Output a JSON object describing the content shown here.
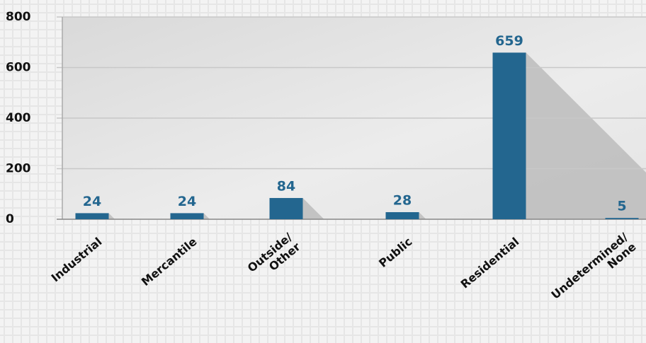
{
  "chart_data": {
    "type": "bar",
    "categories": [
      "Industrial",
      "Mercantile",
      "Outside/\nOther",
      "Public",
      "Residential",
      "Undetermined/\nNone"
    ],
    "values": [
      24,
      24,
      84,
      28,
      659,
      5
    ],
    "color": "#23668f",
    "ylim": [
      0,
      800
    ],
    "yticks": [
      0,
      200,
      400,
      600,
      800
    ],
    "grid": true
  }
}
